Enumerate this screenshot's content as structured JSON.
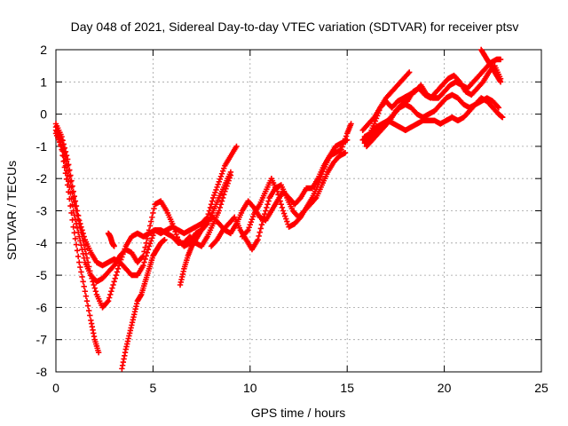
{
  "chart_data": {
    "type": "scatter",
    "title": "Day 048 of 2021, Sidereal Day-to-day VTEC variation (SDTVAR) for receiver ptsv",
    "xlabel": "GPS time / hours",
    "ylabel": "SDTVAR / TECUs",
    "xlim": [
      0,
      25
    ],
    "ylim": [
      -8,
      2
    ],
    "x_ticks": [
      0,
      5,
      10,
      15,
      20,
      25
    ],
    "y_ticks": [
      -8,
      -7,
      -6,
      -5,
      -4,
      -3,
      -2,
      -1,
      0,
      1,
      2
    ],
    "grid": true,
    "legend": "none",
    "marker_color": "#ff0000",
    "marker": "plus",
    "series": [
      {
        "values": [
          [
            0.0,
            -0.5
          ],
          [
            0.3,
            -0.8
          ],
          [
            0.6,
            -1.6
          ],
          [
            0.9,
            -2.6
          ],
          [
            1.2,
            -3.4
          ],
          [
            1.5,
            -4.2
          ],
          [
            1.8,
            -5.0
          ],
          [
            2.1,
            -5.6
          ],
          [
            2.4,
            -6.0
          ],
          [
            2.7,
            -5.8
          ],
          [
            3.0,
            -5.2
          ],
          [
            3.3,
            -4.6
          ],
          [
            3.6,
            -4.1
          ],
          [
            3.9,
            -3.8
          ],
          [
            4.2,
            -3.7
          ],
          [
            4.5,
            -3.8
          ],
          [
            4.8,
            -3.7
          ],
          [
            5.1,
            -3.6
          ],
          [
            5.4,
            -3.7
          ],
          [
            5.7,
            -3.6
          ],
          [
            6.0,
            -3.5
          ],
          [
            6.3,
            -3.6
          ],
          [
            6.6,
            -3.7
          ],
          [
            6.9,
            -3.6
          ],
          [
            7.2,
            -3.5
          ],
          [
            7.5,
            -3.4
          ],
          [
            7.8,
            -3.2
          ],
          [
            8.1,
            -2.6
          ],
          [
            8.4,
            -2.1
          ],
          [
            8.7,
            -1.6
          ],
          [
            9.0,
            -1.3
          ],
          [
            9.3,
            -1.0
          ]
        ]
      },
      {
        "values": [
          [
            0.0,
            -0.3
          ],
          [
            0.3,
            -0.7
          ],
          [
            0.6,
            -1.4
          ],
          [
            0.9,
            -2.4
          ],
          [
            1.2,
            -3.3
          ],
          [
            1.5,
            -3.9
          ],
          [
            1.8,
            -4.3
          ],
          [
            2.1,
            -4.6
          ],
          [
            2.4,
            -4.7
          ],
          [
            2.7,
            -4.6
          ],
          [
            3.0,
            -4.5
          ],
          [
            3.3,
            -4.6
          ],
          [
            3.6,
            -4.8
          ],
          [
            3.9,
            -5.0
          ],
          [
            4.2,
            -5.0
          ],
          [
            4.5,
            -4.7
          ],
          [
            4.8,
            -4.1
          ],
          [
            5.1,
            -3.6
          ],
          [
            5.4,
            -3.6
          ],
          [
            5.7,
            -3.7
          ],
          [
            6.0,
            -3.8
          ],
          [
            6.3,
            -4.0
          ],
          [
            6.6,
            -4.0
          ],
          [
            6.9,
            -3.8
          ],
          [
            7.2,
            -4.0
          ],
          [
            7.5,
            -4.1
          ],
          [
            7.8,
            -3.8
          ],
          [
            8.1,
            -3.4
          ],
          [
            8.4,
            -3.0
          ],
          [
            8.7,
            -2.4
          ],
          [
            9.0,
            -1.9
          ]
        ]
      },
      {
        "values": [
          [
            0.0,
            -0.6
          ],
          [
            0.3,
            -1.0
          ],
          [
            0.6,
            -1.9
          ],
          [
            0.9,
            -3.0
          ],
          [
            1.2,
            -3.8
          ],
          [
            1.5,
            -4.6
          ],
          [
            1.8,
            -5.0
          ],
          [
            2.1,
            -5.2
          ],
          [
            2.4,
            -5.1
          ],
          [
            2.7,
            -4.9
          ],
          [
            3.0,
            -4.7
          ],
          [
            3.3,
            -4.4
          ],
          [
            3.6,
            -4.2
          ],
          [
            3.9,
            -4.3
          ],
          [
            4.2,
            -4.6
          ],
          [
            4.5,
            -4.4
          ],
          [
            4.8,
            -3.6
          ],
          [
            5.1,
            -2.8
          ],
          [
            5.4,
            -2.7
          ],
          [
            5.7,
            -3.0
          ],
          [
            6.0,
            -3.4
          ],
          [
            6.3,
            -3.9
          ],
          [
            6.6,
            -4.1
          ],
          [
            6.9,
            -4.0
          ],
          [
            7.2,
            -3.7
          ],
          [
            7.5,
            -3.6
          ],
          [
            7.8,
            -3.4
          ],
          [
            8.1,
            -3.0
          ],
          [
            8.4,
            -2.6
          ],
          [
            8.7,
            -2.2
          ],
          [
            9.0,
            -1.8
          ]
        ]
      },
      {
        "values": [
          [
            0.0,
            -0.4
          ],
          [
            0.3,
            -1.1
          ],
          [
            0.6,
            -2.2
          ],
          [
            0.9,
            -3.5
          ],
          [
            1.2,
            -4.6
          ],
          [
            1.5,
            -5.5
          ],
          [
            1.8,
            -6.4
          ],
          [
            2.0,
            -7.0
          ],
          [
            2.2,
            -7.4
          ]
        ]
      },
      {
        "values": [
          [
            3.4,
            -7.9
          ],
          [
            3.6,
            -7.3
          ],
          [
            3.8,
            -6.8
          ],
          [
            4.0,
            -6.3
          ],
          [
            4.2,
            -5.8
          ],
          [
            4.4,
            -5.6
          ],
          [
            4.6,
            -5.2
          ],
          [
            4.8,
            -4.8
          ],
          [
            5.0,
            -4.4
          ],
          [
            5.2,
            -4.2
          ],
          [
            5.4,
            -4.0
          ],
          [
            5.6,
            -3.9
          ]
        ]
      },
      {
        "values": [
          [
            2.7,
            -3.7
          ],
          [
            2.8,
            -3.8
          ],
          [
            2.9,
            -4.0
          ],
          [
            3.0,
            -4.1
          ]
        ]
      },
      {
        "values": [
          [
            6.4,
            -5.3
          ],
          [
            6.6,
            -4.8
          ],
          [
            6.8,
            -4.4
          ],
          [
            7.0,
            -4.1
          ],
          [
            7.2,
            -3.9
          ],
          [
            7.5,
            -3.6
          ],
          [
            7.8,
            -3.3
          ],
          [
            8.1,
            -3.2
          ],
          [
            8.4,
            -3.4
          ],
          [
            8.7,
            -3.6
          ],
          [
            9.0,
            -3.7
          ],
          [
            9.3,
            -3.4
          ],
          [
            9.6,
            -3.0
          ],
          [
            9.9,
            -2.7
          ],
          [
            10.2,
            -2.9
          ],
          [
            10.5,
            -3.2
          ],
          [
            10.8,
            -3.3
          ],
          [
            11.1,
            -3.0
          ],
          [
            11.4,
            -2.7
          ],
          [
            11.7,
            -2.4
          ],
          [
            12.0,
            -2.6
          ],
          [
            12.3,
            -2.8
          ],
          [
            12.6,
            -2.6
          ],
          [
            12.9,
            -2.3
          ],
          [
            13.2,
            -2.3
          ],
          [
            13.5,
            -2.0
          ],
          [
            13.8,
            -1.6
          ],
          [
            14.1,
            -1.3
          ],
          [
            14.4,
            -1.0
          ],
          [
            14.7,
            -0.9
          ],
          [
            15.0,
            -0.8
          ]
        ]
      },
      {
        "values": [
          [
            8.0,
            -4.1
          ],
          [
            8.3,
            -3.9
          ],
          [
            8.6,
            -3.6
          ],
          [
            8.9,
            -3.4
          ],
          [
            9.2,
            -3.2
          ],
          [
            9.5,
            -3.6
          ],
          [
            9.8,
            -3.9
          ],
          [
            10.1,
            -4.2
          ],
          [
            10.4,
            -3.9
          ],
          [
            10.7,
            -3.2
          ],
          [
            11.0,
            -2.6
          ],
          [
            11.3,
            -2.3
          ],
          [
            11.6,
            -2.2
          ],
          [
            11.9,
            -2.6
          ],
          [
            12.2,
            -3.0
          ],
          [
            12.5,
            -3.2
          ],
          [
            12.8,
            -3.0
          ],
          [
            13.1,
            -2.8
          ],
          [
            13.4,
            -2.6
          ],
          [
            13.7,
            -2.2
          ],
          [
            14.0,
            -1.8
          ],
          [
            14.3,
            -1.5
          ],
          [
            14.6,
            -1.3
          ],
          [
            14.9,
            -1.2
          ]
        ]
      },
      {
        "values": [
          [
            9.6,
            -3.8
          ],
          [
            9.9,
            -3.6
          ],
          [
            10.2,
            -3.1
          ],
          [
            10.5,
            -2.8
          ],
          [
            10.8,
            -2.4
          ],
          [
            11.1,
            -2.0
          ],
          [
            11.4,
            -2.4
          ],
          [
            11.7,
            -3.0
          ],
          [
            12.0,
            -3.5
          ],
          [
            12.3,
            -3.4
          ],
          [
            12.6,
            -3.2
          ],
          [
            12.9,
            -2.9
          ],
          [
            13.2,
            -2.6
          ],
          [
            13.5,
            -2.2
          ],
          [
            13.8,
            -1.7
          ],
          [
            14.1,
            -1.3
          ],
          [
            14.4,
            -1.2
          ],
          [
            14.7,
            -1.1
          ],
          [
            15.0,
            -0.6
          ],
          [
            15.2,
            -0.3
          ]
        ]
      },
      {
        "values": [
          [
            15.8,
            -0.8
          ],
          [
            16.1,
            -0.7
          ],
          [
            16.4,
            -0.3
          ],
          [
            16.7,
            0.2
          ],
          [
            17.0,
            0.5
          ],
          [
            17.3,
            0.7
          ],
          [
            17.6,
            0.9
          ],
          [
            17.9,
            1.1
          ],
          [
            18.2,
            1.3
          ]
        ]
      },
      {
        "values": [
          [
            15.8,
            -0.5
          ],
          [
            16.1,
            -0.3
          ],
          [
            16.4,
            -0.1
          ],
          [
            16.7,
            0.2
          ],
          [
            17.0,
            0.4
          ],
          [
            17.3,
            0.2
          ],
          [
            17.6,
            0.4
          ],
          [
            17.9,
            0.5
          ],
          [
            18.2,
            0.6
          ],
          [
            18.5,
            0.7
          ],
          [
            18.8,
            0.9
          ],
          [
            19.1,
            0.6
          ],
          [
            19.4,
            0.5
          ],
          [
            19.7,
            0.5
          ],
          [
            20.0,
            0.7
          ],
          [
            20.3,
            0.9
          ],
          [
            20.6,
            1.0
          ],
          [
            20.9,
            0.9
          ],
          [
            21.2,
            0.8
          ],
          [
            21.5,
            1.0
          ],
          [
            21.8,
            1.2
          ],
          [
            22.1,
            1.4
          ],
          [
            22.4,
            1.6
          ],
          [
            22.7,
            1.7
          ],
          [
            22.9,
            1.7
          ]
        ]
      },
      {
        "values": [
          [
            15.9,
            -0.9
          ],
          [
            16.2,
            -0.7
          ],
          [
            16.5,
            -0.5
          ],
          [
            16.8,
            -0.4
          ],
          [
            17.1,
            -0.2
          ],
          [
            17.4,
            0.0
          ],
          [
            17.7,
            0.2
          ],
          [
            18.0,
            0.3
          ],
          [
            18.3,
            0.2
          ],
          [
            18.6,
            0.0
          ],
          [
            18.9,
            -0.1
          ],
          [
            19.2,
            0.0
          ],
          [
            19.5,
            0.1
          ],
          [
            19.8,
            0.3
          ],
          [
            20.1,
            0.5
          ],
          [
            20.4,
            0.6
          ],
          [
            20.7,
            0.5
          ],
          [
            21.0,
            0.3
          ],
          [
            21.3,
            0.2
          ],
          [
            21.6,
            0.3
          ],
          [
            21.9,
            0.4
          ],
          [
            22.2,
            0.5
          ],
          [
            22.5,
            0.4
          ],
          [
            22.8,
            0.2
          ]
        ]
      },
      {
        "values": [
          [
            15.9,
            -0.7
          ],
          [
            16.2,
            -0.6
          ],
          [
            16.5,
            -0.4
          ],
          [
            16.8,
            -0.3
          ],
          [
            17.1,
            -0.2
          ],
          [
            17.4,
            -0.3
          ],
          [
            17.7,
            -0.4
          ],
          [
            18.0,
            -0.5
          ],
          [
            18.3,
            -0.4
          ],
          [
            18.6,
            -0.3
          ],
          [
            18.9,
            -0.2
          ],
          [
            19.2,
            -0.2
          ],
          [
            19.5,
            -0.2
          ],
          [
            19.8,
            -0.3
          ],
          [
            20.1,
            -0.2
          ],
          [
            20.4,
            -0.1
          ],
          [
            20.7,
            -0.2
          ],
          [
            21.0,
            -0.1
          ],
          [
            21.3,
            0.1
          ],
          [
            21.6,
            0.3
          ],
          [
            21.9,
            0.5
          ],
          [
            22.2,
            0.4
          ],
          [
            22.5,
            0.2
          ],
          [
            22.8,
            0.0
          ],
          [
            23.0,
            -0.1
          ]
        ]
      },
      {
        "values": [
          [
            16.0,
            -1.0
          ],
          [
            16.3,
            -0.8
          ],
          [
            16.6,
            -0.6
          ],
          [
            16.9,
            -0.4
          ],
          [
            17.2,
            -0.2
          ],
          [
            17.5,
            0.1
          ],
          [
            17.8,
            0.3
          ],
          [
            18.1,
            0.4
          ],
          [
            18.4,
            0.7
          ],
          [
            18.7,
            0.8
          ],
          [
            19.0,
            0.6
          ],
          [
            19.3,
            0.5
          ],
          [
            19.6,
            0.7
          ],
          [
            19.9,
            0.9
          ],
          [
            20.2,
            1.1
          ],
          [
            20.5,
            1.2
          ],
          [
            20.8,
            1.0
          ],
          [
            21.1,
            0.7
          ],
          [
            21.4,
            0.6
          ],
          [
            21.7,
            0.8
          ],
          [
            22.0,
            1.0
          ],
          [
            22.3,
            1.3
          ],
          [
            22.6,
            1.5
          ],
          [
            22.9,
            1.1
          ]
        ]
      },
      {
        "values": [
          [
            21.9,
            2.0
          ],
          [
            22.1,
            1.8
          ],
          [
            22.3,
            1.6
          ],
          [
            22.5,
            1.4
          ],
          [
            22.7,
            1.2
          ],
          [
            22.9,
            1.0
          ]
        ]
      }
    ]
  }
}
